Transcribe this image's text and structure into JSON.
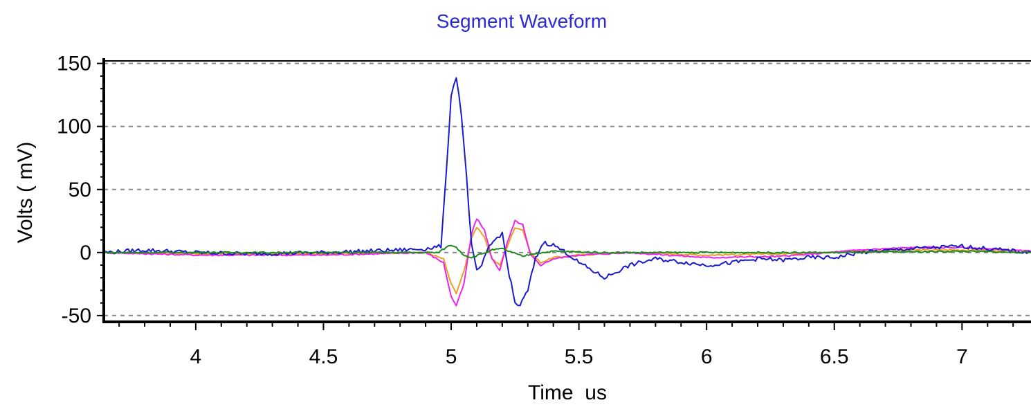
{
  "chart_data": {
    "type": "line",
    "title": "Segment Waveform",
    "xlabel": "Time  us",
    "ylabel": "Volts ( mV)",
    "xlim": [
      3.64,
      7.27
    ],
    "ylim": [
      -55,
      152
    ],
    "x_ticks": [
      {
        "value": 4,
        "label": "4"
      },
      {
        "value": 4.5,
        "label": "4.5"
      },
      {
        "value": 5,
        "label": "5"
      },
      {
        "value": 5.5,
        "label": "5.5"
      },
      {
        "value": 6,
        "label": "6"
      },
      {
        "value": 6.5,
        "label": "6.5"
      },
      {
        "value": 7,
        "label": "7"
      }
    ],
    "y_ticks": [
      {
        "value": 150,
        "label": "150"
      },
      {
        "value": 100,
        "label": "100"
      },
      {
        "value": 50,
        "label": "50"
      },
      {
        "value": 0,
        "label": "0"
      },
      {
        "value": -50,
        "label": "-50"
      }
    ],
    "grid": {
      "horizontal": true,
      "vertical": false,
      "style": "dashed"
    },
    "legend": "none",
    "colors": {
      "title": "#2b2bd6",
      "series_blue": "#1a1acc",
      "series_magenta": "#ee22ee",
      "series_orange": "#e8a020",
      "series_green": "#1d8a1d",
      "grid": "#888888",
      "axis": "#000000"
    },
    "series": [
      {
        "color": "#e8a020",
        "x": [
          3.64,
          4.0,
          4.5,
          4.9,
          4.97,
          5.0,
          5.02,
          5.05,
          5.08,
          5.1,
          5.13,
          5.16,
          5.19,
          5.22,
          5.25,
          5.28,
          5.31,
          5.35,
          5.4,
          5.5,
          5.7,
          6.0,
          6.3,
          6.6,
          6.8,
          7.0,
          7.27
        ],
        "y": [
          0,
          -1,
          -1,
          0,
          -5,
          -25,
          -32,
          -15,
          12,
          20,
          12,
          -5,
          -10,
          5,
          20,
          18,
          0,
          -8,
          -4,
          -2,
          0,
          -2,
          -1,
          1,
          2,
          2,
          1
        ]
      },
      {
        "color": "#ee22ee",
        "x": [
          3.64,
          4.0,
          4.5,
          4.9,
          4.97,
          5.0,
          5.02,
          5.05,
          5.08,
          5.1,
          5.13,
          5.16,
          5.19,
          5.22,
          5.25,
          5.28,
          5.31,
          5.35,
          5.4,
          5.5,
          5.7,
          6.0,
          6.3,
          6.6,
          6.8,
          7.0,
          7.27
        ],
        "y": [
          0,
          -2,
          -2,
          0,
          -8,
          -35,
          -42,
          -25,
          15,
          27,
          18,
          -5,
          -14,
          8,
          25,
          22,
          -2,
          -10,
          -5,
          -2,
          0,
          -4,
          -3,
          2,
          4,
          4,
          1
        ]
      },
      {
        "color": "#1a1acc",
        "x": [
          3.64,
          3.8,
          4.0,
          4.2,
          4.5,
          4.8,
          4.9,
          4.96,
          4.98,
          5.0,
          5.02,
          5.04,
          5.06,
          5.08,
          5.1,
          5.12,
          5.15,
          5.18,
          5.2,
          5.22,
          5.25,
          5.27,
          5.3,
          5.33,
          5.36,
          5.4,
          5.45,
          5.5,
          5.55,
          5.6,
          5.65,
          5.7,
          5.8,
          6.0,
          6.1,
          6.2,
          6.3,
          6.4,
          6.5,
          6.6,
          6.8,
          7.0,
          7.1,
          7.27
        ],
        "y": [
          0,
          2,
          0,
          -1,
          0,
          2,
          3,
          5,
          60,
          125,
          140,
          110,
          60,
          5,
          -15,
          -10,
          5,
          12,
          15,
          -10,
          -40,
          -42,
          -30,
          -5,
          8,
          6,
          0,
          -8,
          -14,
          -20,
          -15,
          -10,
          -5,
          -10,
          -8,
          -5,
          -6,
          -4,
          -4,
          0,
          3,
          5,
          3,
          0
        ]
      },
      {
        "color": "#1d8a1d",
        "x": [
          3.64,
          4.0,
          4.5,
          4.95,
          4.98,
          5.0,
          5.02,
          5.05,
          5.08,
          5.12,
          5.16,
          5.2,
          5.24,
          5.28,
          5.32,
          5.4,
          5.6,
          6.0,
          6.5,
          7.0,
          7.27
        ],
        "y": [
          0,
          0,
          0,
          0,
          4,
          6,
          4,
          -2,
          -4,
          -1,
          2,
          3,
          0,
          -3,
          -1,
          1,
          0,
          0,
          0,
          1,
          0
        ]
      }
    ]
  }
}
